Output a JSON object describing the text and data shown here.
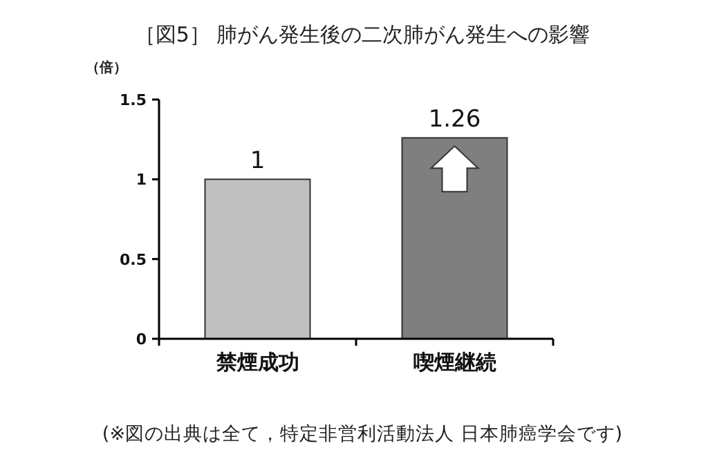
{
  "chart_data": {
    "type": "bar",
    "title": "［図5］ 肺がん発生後の二次肺がん発生への影響",
    "ylabel": "（倍）",
    "categories": [
      "禁煙成功",
      "喫煙継続"
    ],
    "values": [
      1,
      1.26
    ],
    "colors": [
      "#c0c0c0",
      "#7f7f7f"
    ],
    "ylim": [
      0,
      1.5
    ],
    "yticks": [
      0,
      0.5,
      1,
      1.5
    ],
    "data_labels": true,
    "grid": false,
    "annotations": [
      "(※図の出典は全て，特定非営利活動法人 日本肺癌学会です)"
    ]
  }
}
